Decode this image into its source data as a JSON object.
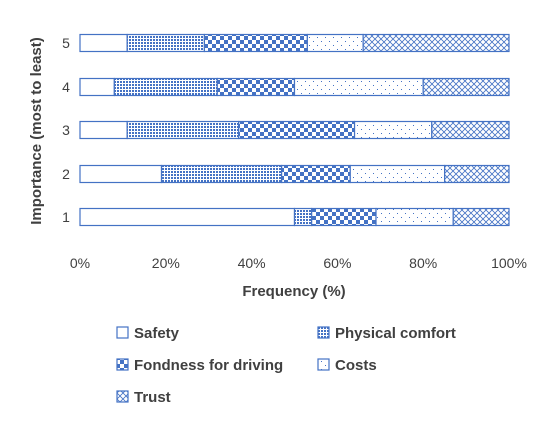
{
  "chart_data": {
    "type": "bar",
    "orientation": "horizontal",
    "stacked": "percent",
    "title": "",
    "xlabel": "Frequency (%)",
    "ylabel": "Importance (most to least)",
    "xlim": [
      0,
      100
    ],
    "x_ticks": [
      "0%",
      "20%",
      "40%",
      "60%",
      "80%",
      "100%"
    ],
    "categories": [
      "5",
      "4",
      "3",
      "2",
      "1"
    ],
    "legend_position": "bottom",
    "grid": false,
    "series": [
      {
        "name": "Safety",
        "values": [
          11,
          8,
          11,
          19,
          50
        ],
        "pattern": "none"
      },
      {
        "name": "Physical comfort",
        "values": [
          18,
          24,
          26,
          28,
          4
        ],
        "pattern": "dots"
      },
      {
        "name": "Fondness for driving",
        "values": [
          24,
          18,
          27,
          16,
          15
        ],
        "pattern": "checker"
      },
      {
        "name": "Costs",
        "values": [
          13,
          30,
          18,
          22,
          18
        ],
        "pattern": "sparse"
      },
      {
        "name": "Trust",
        "values": [
          34,
          20,
          18,
          15,
          13
        ],
        "pattern": "cross"
      }
    ],
    "colors": {
      "border": "#4472c4",
      "fill": "#ffffff"
    }
  }
}
